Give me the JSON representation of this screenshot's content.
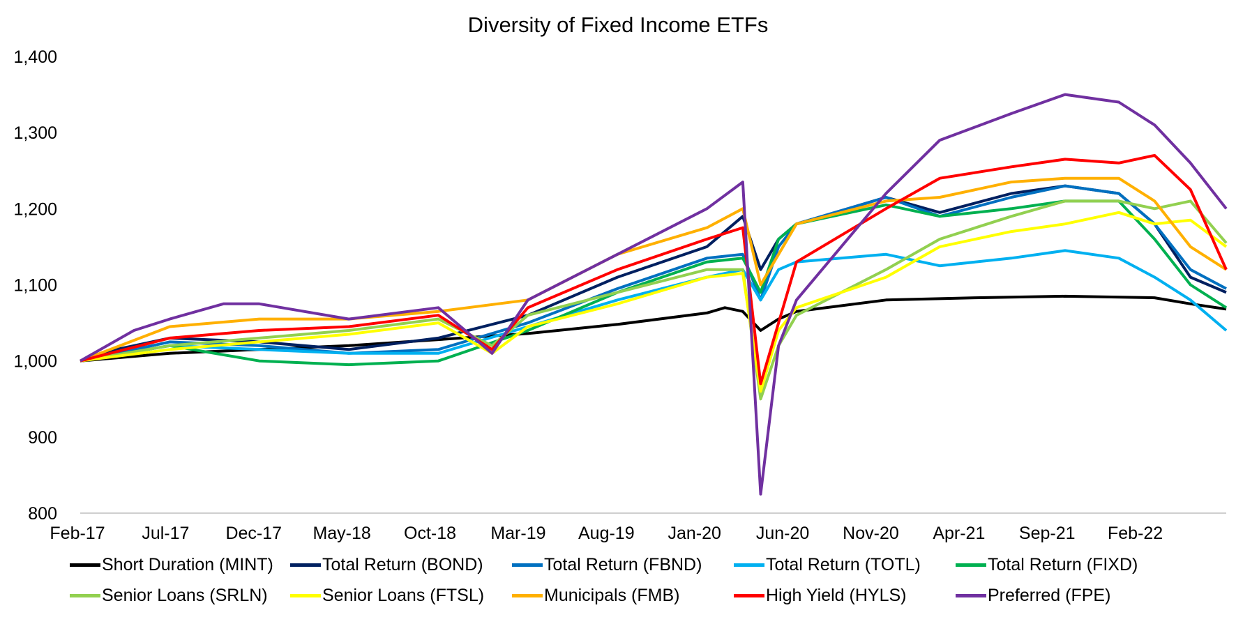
{
  "chart_data": {
    "type": "line",
    "title": "Diversity of Fixed Income ETFs",
    "xlabel": "",
    "ylabel": "",
    "ylim": [
      800,
      1400
    ],
    "yticks": [
      "800",
      "900",
      "1,000",
      "1,100",
      "1,200",
      "1,300",
      "1,400"
    ],
    "xticks": [
      "Feb-17",
      "Jul-17",
      "Dec-17",
      "May-18",
      "Oct-18",
      "Mar-19",
      "Aug-19",
      "Jan-20",
      "Jun-20",
      "Nov-20",
      "Apr-21",
      "Sep-21",
      "Feb-22"
    ],
    "x_index_range": [
      0,
      64
    ],
    "grid": false,
    "legend_position": "bottom",
    "series": [
      {
        "name": "Short Duration (MINT)",
        "color": "#000000",
        "points": [
          [
            0,
            1000
          ],
          [
            5,
            1010
          ],
          [
            10,
            1015
          ],
          [
            15,
            1020
          ],
          [
            20,
            1028
          ],
          [
            25,
            1036
          ],
          [
            30,
            1048
          ],
          [
            35,
            1063
          ],
          [
            36,
            1070
          ],
          [
            37,
            1065
          ],
          [
            38,
            1040
          ],
          [
            39,
            1055
          ],
          [
            40,
            1065
          ],
          [
            45,
            1080
          ],
          [
            50,
            1083
          ],
          [
            55,
            1085
          ],
          [
            60,
            1083
          ],
          [
            62,
            1075
          ],
          [
            64,
            1068
          ]
        ]
      },
      {
        "name": "Total Return (BOND)",
        "color": "#002060",
        "points": [
          [
            0,
            1000
          ],
          [
            2,
            1015
          ],
          [
            5,
            1030
          ],
          [
            10,
            1025
          ],
          [
            15,
            1015
          ],
          [
            20,
            1030
          ],
          [
            25,
            1060
          ],
          [
            30,
            1110
          ],
          [
            35,
            1150
          ],
          [
            37,
            1190
          ],
          [
            38,
            1120
          ],
          [
            39,
            1160
          ],
          [
            40,
            1180
          ],
          [
            45,
            1215
          ],
          [
            48,
            1195
          ],
          [
            52,
            1220
          ],
          [
            55,
            1230
          ],
          [
            58,
            1220
          ],
          [
            60,
            1180
          ],
          [
            62,
            1110
          ],
          [
            64,
            1090
          ]
        ]
      },
      {
        "name": "Total Return (FBND)",
        "color": "#0070C0",
        "points": [
          [
            0,
            1000
          ],
          [
            2,
            1010
          ],
          [
            5,
            1025
          ],
          [
            10,
            1020
          ],
          [
            15,
            1010
          ],
          [
            20,
            1015
          ],
          [
            25,
            1050
          ],
          [
            30,
            1095
          ],
          [
            35,
            1135
          ],
          [
            37,
            1140
          ],
          [
            38,
            1080
          ],
          [
            39,
            1150
          ],
          [
            40,
            1180
          ],
          [
            45,
            1215
          ],
          [
            48,
            1190
          ],
          [
            52,
            1215
          ],
          [
            55,
            1230
          ],
          [
            58,
            1220
          ],
          [
            60,
            1180
          ],
          [
            62,
            1120
          ],
          [
            64,
            1095
          ]
        ]
      },
      {
        "name": "Total Return (TOTL)",
        "color": "#00B0F0",
        "points": [
          [
            0,
            1000
          ],
          [
            5,
            1020
          ],
          [
            10,
            1015
          ],
          [
            15,
            1010
          ],
          [
            20,
            1010
          ],
          [
            25,
            1045
          ],
          [
            30,
            1080
          ],
          [
            35,
            1110
          ],
          [
            37,
            1120
          ],
          [
            38,
            1080
          ],
          [
            39,
            1120
          ],
          [
            40,
            1130
          ],
          [
            45,
            1140
          ],
          [
            48,
            1125
          ],
          [
            52,
            1135
          ],
          [
            55,
            1145
          ],
          [
            58,
            1135
          ],
          [
            60,
            1110
          ],
          [
            62,
            1080
          ],
          [
            64,
            1040
          ]
        ]
      },
      {
        "name": "Total Return (FIXD)",
        "color": "#00B050",
        "points": [
          [
            0,
            1000
          ],
          [
            5,
            1020
          ],
          [
            10,
            1000
          ],
          [
            15,
            995
          ],
          [
            20,
            1000
          ],
          [
            25,
            1040
          ],
          [
            30,
            1090
          ],
          [
            35,
            1130
          ],
          [
            37,
            1135
          ],
          [
            38,
            1090
          ],
          [
            39,
            1160
          ],
          [
            40,
            1180
          ],
          [
            45,
            1205
          ],
          [
            48,
            1190
          ],
          [
            52,
            1200
          ],
          [
            55,
            1210
          ],
          [
            58,
            1210
          ],
          [
            60,
            1160
          ],
          [
            62,
            1100
          ],
          [
            64,
            1070
          ]
        ]
      },
      {
        "name": "Senior Loans (SRLN)",
        "color": "#92D050",
        "points": [
          [
            0,
            1000
          ],
          [
            5,
            1020
          ],
          [
            10,
            1030
          ],
          [
            15,
            1040
          ],
          [
            20,
            1055
          ],
          [
            23,
            1020
          ],
          [
            25,
            1060
          ],
          [
            30,
            1090
          ],
          [
            35,
            1120
          ],
          [
            37,
            1120
          ],
          [
            38,
            950
          ],
          [
            39,
            1020
          ],
          [
            40,
            1060
          ],
          [
            45,
            1120
          ],
          [
            48,
            1160
          ],
          [
            52,
            1190
          ],
          [
            55,
            1210
          ],
          [
            58,
            1210
          ],
          [
            60,
            1200
          ],
          [
            62,
            1210
          ],
          [
            64,
            1155
          ]
        ]
      },
      {
        "name": "Senior Loans (FTSL)",
        "color": "#FFFF00",
        "points": [
          [
            0,
            1000
          ],
          [
            5,
            1015
          ],
          [
            10,
            1025
          ],
          [
            15,
            1035
          ],
          [
            20,
            1050
          ],
          [
            23,
            1010
          ],
          [
            25,
            1045
          ],
          [
            30,
            1075
          ],
          [
            35,
            1110
          ],
          [
            37,
            1115
          ],
          [
            38,
            960
          ],
          [
            39,
            1040
          ],
          [
            40,
            1070
          ],
          [
            45,
            1110
          ],
          [
            48,
            1150
          ],
          [
            52,
            1170
          ],
          [
            55,
            1180
          ],
          [
            58,
            1195
          ],
          [
            60,
            1180
          ],
          [
            62,
            1185
          ],
          [
            64,
            1150
          ]
        ]
      },
      {
        "name": "Municipals (FMB)",
        "color": "#FFB000",
        "points": [
          [
            0,
            1000
          ],
          [
            5,
            1045
          ],
          [
            10,
            1055
          ],
          [
            15,
            1055
          ],
          [
            20,
            1065
          ],
          [
            25,
            1080
          ],
          [
            30,
            1140
          ],
          [
            35,
            1175
          ],
          [
            37,
            1200
          ],
          [
            38,
            1100
          ],
          [
            39,
            1140
          ],
          [
            40,
            1180
          ],
          [
            45,
            1210
          ],
          [
            48,
            1215
          ],
          [
            52,
            1235
          ],
          [
            55,
            1240
          ],
          [
            58,
            1240
          ],
          [
            60,
            1210
          ],
          [
            62,
            1150
          ],
          [
            64,
            1120
          ]
        ]
      },
      {
        "name": "High Yield (HYLS)",
        "color": "#FF0000",
        "points": [
          [
            0,
            1000
          ],
          [
            5,
            1030
          ],
          [
            10,
            1040
          ],
          [
            15,
            1045
          ],
          [
            20,
            1060
          ],
          [
            23,
            1015
          ],
          [
            25,
            1070
          ],
          [
            30,
            1120
          ],
          [
            35,
            1160
          ],
          [
            37,
            1175
          ],
          [
            38,
            970
          ],
          [
            39,
            1050
          ],
          [
            40,
            1130
          ],
          [
            45,
            1200
          ],
          [
            48,
            1240
          ],
          [
            52,
            1255
          ],
          [
            55,
            1265
          ],
          [
            58,
            1260
          ],
          [
            60,
            1270
          ],
          [
            62,
            1225
          ],
          [
            64,
            1120
          ]
        ]
      },
      {
        "name": "Preferred (FPE)",
        "color": "#7030A0",
        "points": [
          [
            0,
            1000
          ],
          [
            3,
            1040
          ],
          [
            5,
            1055
          ],
          [
            8,
            1075
          ],
          [
            10,
            1075
          ],
          [
            15,
            1055
          ],
          [
            20,
            1070
          ],
          [
            23,
            1010
          ],
          [
            25,
            1080
          ],
          [
            30,
            1140
          ],
          [
            35,
            1200
          ],
          [
            37,
            1235
          ],
          [
            38,
            825
          ],
          [
            39,
            1020
          ],
          [
            40,
            1080
          ],
          [
            45,
            1220
          ],
          [
            48,
            1290
          ],
          [
            52,
            1325
          ],
          [
            55,
            1350
          ],
          [
            58,
            1340
          ],
          [
            60,
            1310
          ],
          [
            62,
            1260
          ],
          [
            64,
            1200
          ]
        ]
      }
    ]
  }
}
